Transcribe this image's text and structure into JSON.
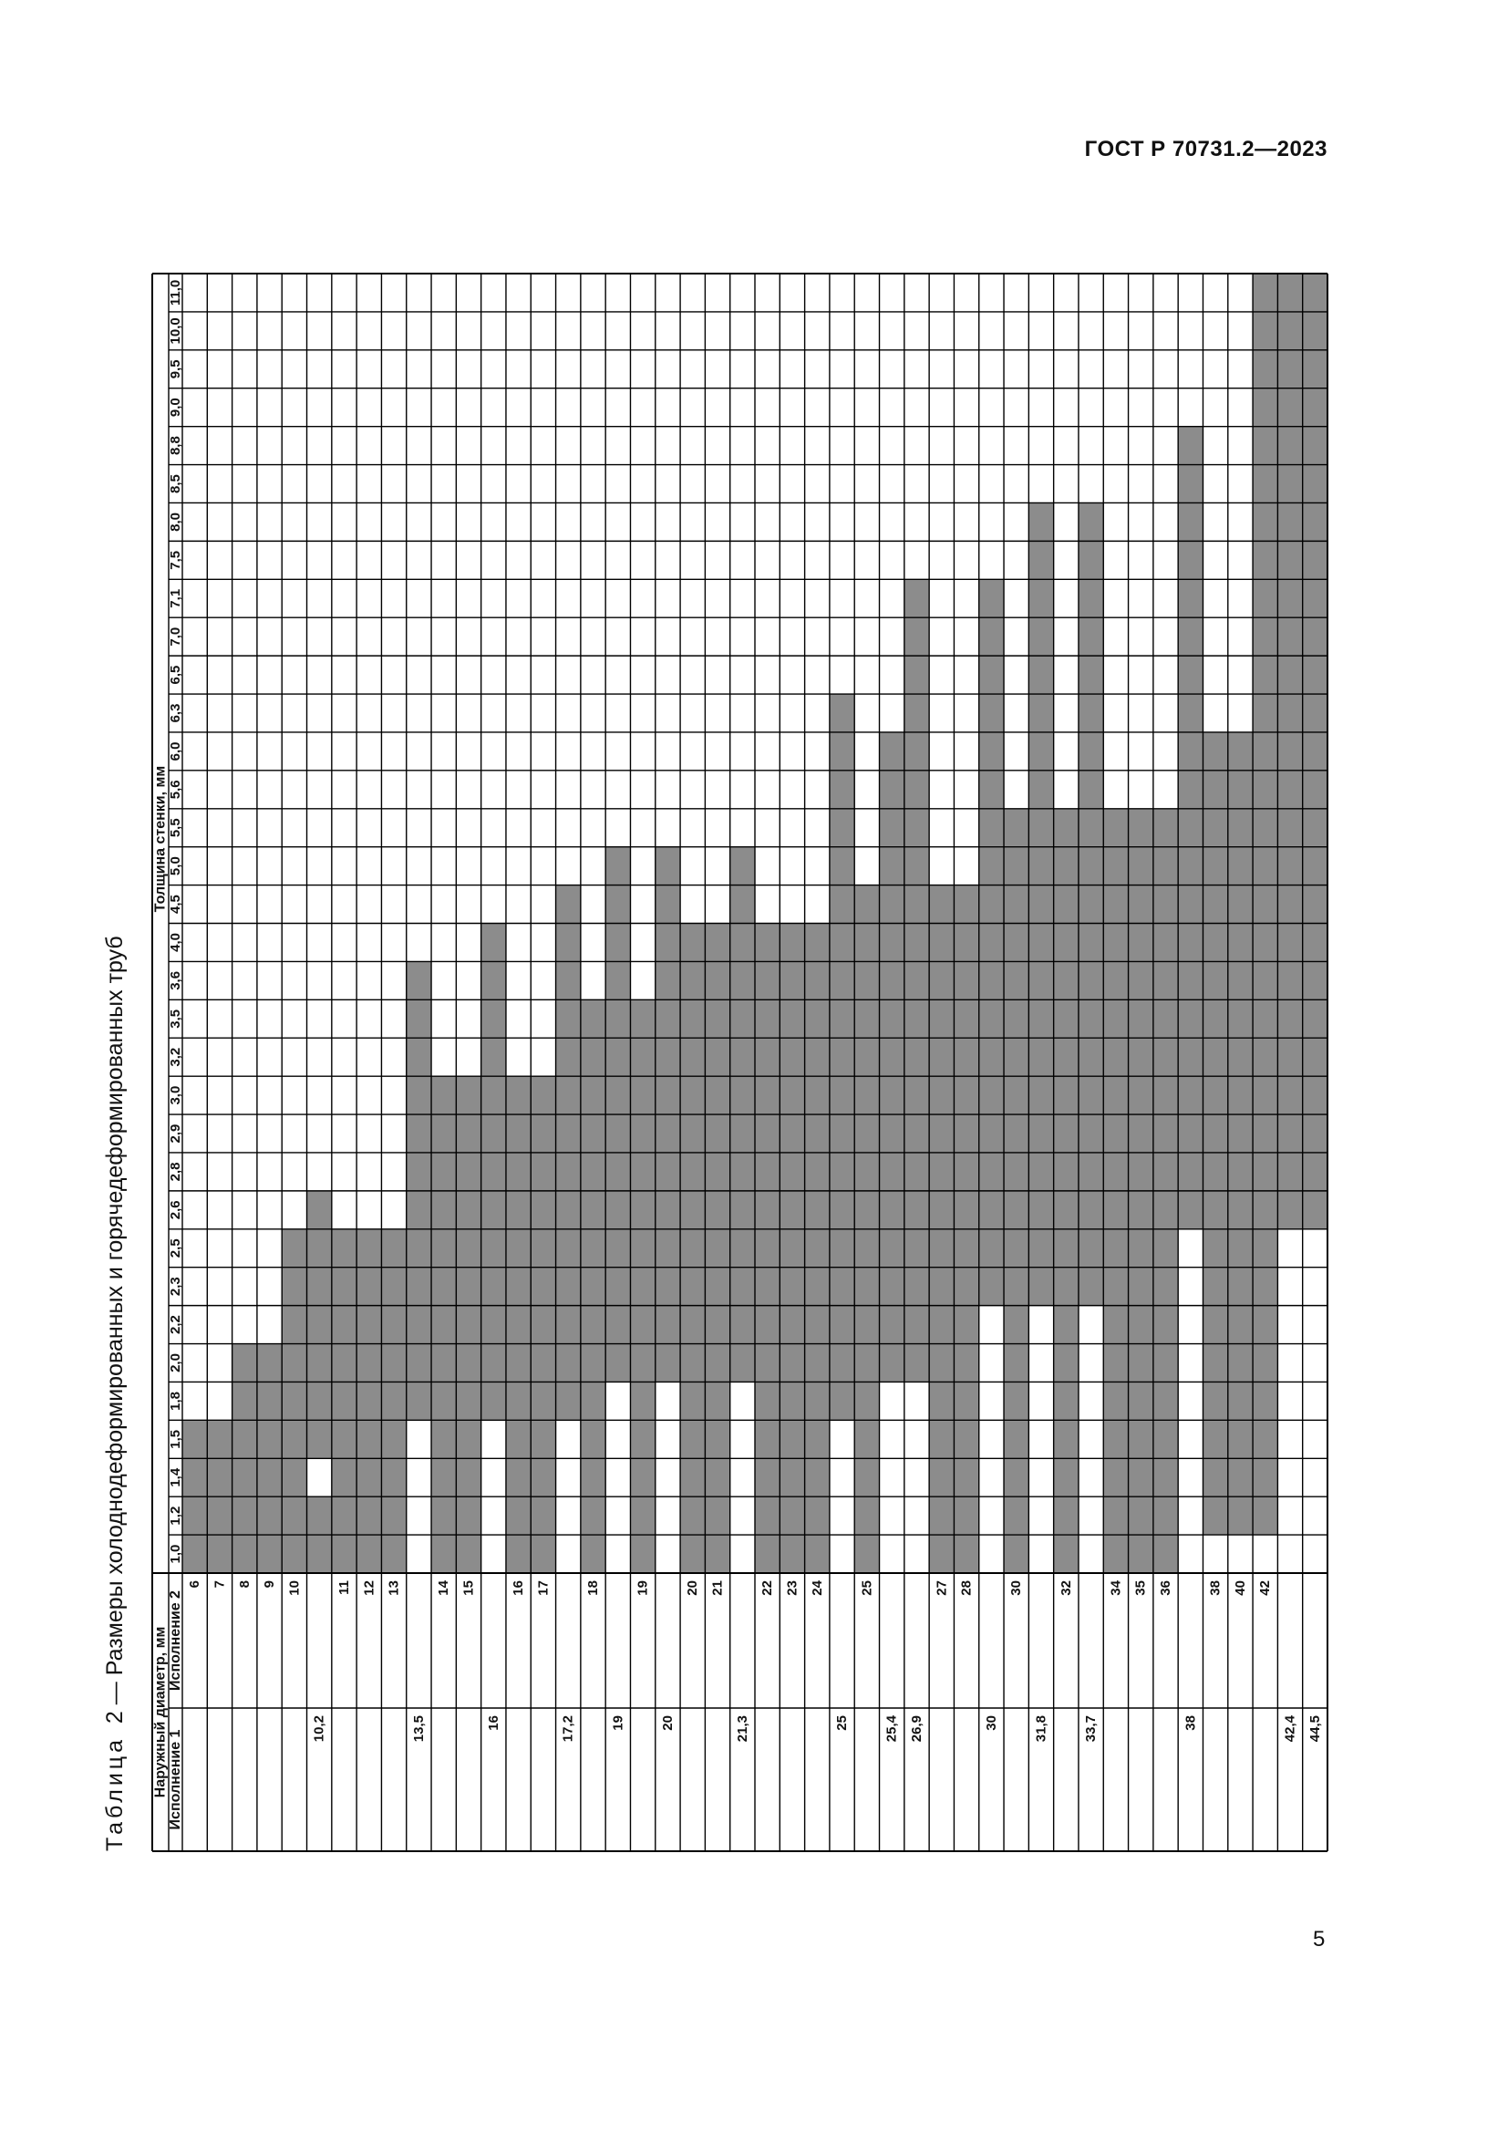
{
  "document": {
    "standard": "ГОСТ Р 70731.2—2023",
    "page_number": "5",
    "table_prefix": "Таблица",
    "table_number": "2",
    "table_dash": "—",
    "table_title": "Размеры холоднодеформированных и горячедеформированных труб"
  },
  "table": {
    "header_diameter": "Наружный диаметр, мм",
    "header_exec1": "Исполнение 1",
    "header_exec2": "Исполнение 2",
    "header_thickness": "Толщина стенки, мм",
    "fill_color": "#8c8c8c",
    "thicknesses": [
      "1,0",
      "1,2",
      "1,4",
      "1,5",
      "1,8",
      "2,0",
      "2,2",
      "2,3",
      "2,5",
      "2,6",
      "2,8",
      "2,9",
      "3,0",
      "3,2",
      "3,5",
      "3,6",
      "4,0",
      "4,5",
      "5,0",
      "5,5",
      "5,6",
      "6,0",
      "6,3",
      "6,5",
      "7,0",
      "7,1",
      "7,5",
      "8,0",
      "8,5",
      "8,8",
      "9,0",
      "9,5",
      "10,0",
      "11,0"
    ],
    "rows": [
      {
        "e1": "",
        "e2": "6",
        "filled": [
          0,
          1,
          2,
          3
        ]
      },
      {
        "e1": "",
        "e2": "7",
        "filled": [
          0,
          1,
          2,
          3
        ]
      },
      {
        "e1": "",
        "e2": "8",
        "filled": [
          0,
          1,
          2,
          3,
          4,
          5
        ]
      },
      {
        "e1": "",
        "e2": "9",
        "filled": [
          0,
          1,
          2,
          3,
          4,
          5
        ]
      },
      {
        "e1": "",
        "e2": "10",
        "filled": [
          0,
          1,
          2,
          3,
          4,
          5,
          6,
          7,
          8
        ]
      },
      {
        "e1": "10,2",
        "e2": "",
        "filled": [
          0,
          1,
          3,
          4,
          5,
          6,
          7,
          8,
          9
        ]
      },
      {
        "e1": "",
        "e2": "11",
        "filled": [
          0,
          1,
          2,
          3,
          4,
          5,
          6,
          7,
          8
        ]
      },
      {
        "e1": "",
        "e2": "12",
        "filled": [
          0,
          1,
          2,
          3,
          4,
          5,
          6,
          7,
          8
        ]
      },
      {
        "e1": "",
        "e2": "13",
        "filled": [
          0,
          1,
          2,
          3,
          4,
          5,
          6,
          7,
          8
        ]
      },
      {
        "e1": "13,5",
        "e2": "",
        "filled": [
          4,
          5,
          6,
          7,
          8,
          9,
          10,
          11,
          12,
          13,
          14,
          15
        ]
      },
      {
        "e1": "",
        "e2": "14",
        "filled": [
          0,
          1,
          2,
          3,
          4,
          5,
          6,
          7,
          8,
          9,
          10,
          11,
          12
        ]
      },
      {
        "e1": "",
        "e2": "15",
        "filled": [
          0,
          1,
          2,
          3,
          4,
          5,
          6,
          7,
          8,
          9,
          10,
          11,
          12
        ]
      },
      {
        "e1": "16",
        "e2": "",
        "filled": [
          4,
          5,
          6,
          7,
          8,
          9,
          10,
          11,
          12,
          13,
          14,
          15,
          16
        ]
      },
      {
        "e1": "",
        "e2": "16",
        "filled": [
          0,
          1,
          2,
          3,
          4,
          5,
          6,
          7,
          8,
          9,
          10,
          11,
          12
        ]
      },
      {
        "e1": "",
        "e2": "17",
        "filled": [
          0,
          1,
          2,
          3,
          4,
          5,
          6,
          7,
          8,
          9,
          10,
          11,
          12
        ]
      },
      {
        "e1": "17,2",
        "e2": "",
        "filled": [
          4,
          5,
          6,
          7,
          8,
          9,
          10,
          11,
          12,
          13,
          14,
          15,
          16,
          17
        ]
      },
      {
        "e1": "",
        "e2": "18",
        "filled": [
          0,
          1,
          2,
          3,
          4,
          5,
          6,
          7,
          8,
          9,
          10,
          11,
          12,
          13,
          14
        ]
      },
      {
        "e1": "19",
        "e2": "",
        "filled": [
          5,
          6,
          7,
          8,
          9,
          10,
          11,
          12,
          13,
          14,
          15,
          16,
          17,
          18
        ]
      },
      {
        "e1": "",
        "e2": "19",
        "filled": [
          0,
          1,
          2,
          3,
          4,
          5,
          6,
          7,
          8,
          9,
          10,
          11,
          12,
          13,
          14
        ]
      },
      {
        "e1": "20",
        "e2": "",
        "filled": [
          5,
          6,
          7,
          8,
          9,
          10,
          11,
          12,
          13,
          14,
          15,
          16,
          17,
          18
        ]
      },
      {
        "e1": "",
        "e2": "20",
        "filled": [
          0,
          1,
          2,
          3,
          4,
          5,
          6,
          7,
          8,
          9,
          10,
          11,
          12,
          13,
          14,
          15,
          16
        ]
      },
      {
        "e1": "",
        "e2": "21",
        "filled": [
          0,
          1,
          2,
          3,
          4,
          5,
          6,
          7,
          8,
          9,
          10,
          11,
          12,
          13,
          14,
          15,
          16
        ]
      },
      {
        "e1": "21,3",
        "e2": "",
        "filled": [
          5,
          6,
          7,
          8,
          9,
          10,
          11,
          12,
          13,
          14,
          15,
          16,
          17,
          18
        ]
      },
      {
        "e1": "",
        "e2": "22",
        "filled": [
          0,
          1,
          2,
          3,
          4,
          5,
          6,
          7,
          8,
          9,
          10,
          11,
          12,
          13,
          14,
          15,
          16
        ]
      },
      {
        "e1": "",
        "e2": "23",
        "filled": [
          0,
          1,
          2,
          3,
          4,
          5,
          6,
          7,
          8,
          9,
          10,
          11,
          12,
          13,
          14,
          15,
          16
        ]
      },
      {
        "e1": "",
        "e2": "24",
        "filled": [
          0,
          1,
          2,
          3,
          4,
          5,
          6,
          7,
          8,
          9,
          10,
          11,
          12,
          13,
          14,
          15,
          16
        ]
      },
      {
        "e1": "25",
        "e2": "",
        "filled": [
          4,
          5,
          6,
          7,
          8,
          9,
          10,
          11,
          12,
          13,
          14,
          15,
          16,
          17,
          18,
          19,
          20,
          21,
          22
        ]
      },
      {
        "e1": "",
        "e2": "25",
        "filled": [
          0,
          1,
          2,
          3,
          4,
          5,
          6,
          7,
          8,
          9,
          10,
          11,
          12,
          13,
          14,
          15,
          16,
          17
        ]
      },
      {
        "e1": "25,4",
        "e2": "",
        "filled": [
          5,
          6,
          7,
          8,
          9,
          10,
          11,
          12,
          13,
          14,
          15,
          16,
          17,
          18,
          19,
          20,
          21
        ]
      },
      {
        "e1": "26,9",
        "e2": "",
        "filled": [
          5,
          6,
          7,
          8,
          9,
          10,
          11,
          12,
          13,
          14,
          15,
          16,
          17,
          18,
          19,
          20,
          21,
          22,
          23,
          24,
          25
        ]
      },
      {
        "e1": "",
        "e2": "27",
        "filled": [
          0,
          1,
          2,
          3,
          4,
          5,
          6,
          7,
          8,
          9,
          10,
          11,
          12,
          13,
          14,
          15,
          16,
          17
        ]
      },
      {
        "e1": "",
        "e2": "28",
        "filled": [
          0,
          1,
          2,
          3,
          4,
          5,
          6,
          7,
          8,
          9,
          10,
          11,
          12,
          13,
          14,
          15,
          16,
          17
        ]
      },
      {
        "e1": "30",
        "e2": "",
        "filled": [
          7,
          8,
          9,
          10,
          11,
          12,
          13,
          14,
          15,
          16,
          17,
          18,
          19,
          20,
          21,
          22,
          23,
          24,
          25
        ]
      },
      {
        "e1": "",
        "e2": "30",
        "filled": [
          0,
          1,
          2,
          3,
          4,
          5,
          6,
          7,
          8,
          9,
          10,
          11,
          12,
          13,
          14,
          15,
          16,
          17,
          18,
          19
        ]
      },
      {
        "e1": "31,8",
        "e2": "",
        "filled": [
          7,
          8,
          9,
          10,
          11,
          12,
          13,
          14,
          15,
          16,
          17,
          18,
          19,
          20,
          21,
          22,
          23,
          24,
          25,
          26,
          27
        ]
      },
      {
        "e1": "",
        "e2": "32",
        "filled": [
          0,
          1,
          2,
          3,
          4,
          5,
          6,
          7,
          8,
          9,
          10,
          11,
          12,
          13,
          14,
          15,
          16,
          17,
          18,
          19
        ]
      },
      {
        "e1": "33,7",
        "e2": "",
        "filled": [
          7,
          8,
          9,
          10,
          11,
          12,
          13,
          14,
          15,
          16,
          17,
          18,
          19,
          20,
          21,
          22,
          23,
          24,
          25,
          26,
          27
        ]
      },
      {
        "e1": "",
        "e2": "34",
        "filled": [
          0,
          1,
          2,
          3,
          4,
          5,
          6,
          7,
          8,
          9,
          10,
          11,
          12,
          13,
          14,
          15,
          16,
          17,
          18,
          19
        ]
      },
      {
        "e1": "",
        "e2": "35",
        "filled": [
          0,
          1,
          2,
          3,
          4,
          5,
          6,
          7,
          8,
          9,
          10,
          11,
          12,
          13,
          14,
          15,
          16,
          17,
          18,
          19
        ]
      },
      {
        "e1": "",
        "e2": "36",
        "filled": [
          0,
          1,
          2,
          3,
          4,
          5,
          6,
          7,
          8,
          9,
          10,
          11,
          12,
          13,
          14,
          15,
          16,
          17,
          18,
          19
        ]
      },
      {
        "e1": "38",
        "e2": "",
        "filled": [
          9,
          10,
          11,
          12,
          13,
          14,
          15,
          16,
          17,
          18,
          19,
          20,
          21,
          22,
          23,
          24,
          25,
          26,
          27,
          28,
          29
        ]
      },
      {
        "e1": "",
        "e2": "38",
        "filled": [
          1,
          2,
          3,
          4,
          5,
          6,
          7,
          8,
          9,
          10,
          11,
          12,
          13,
          14,
          15,
          16,
          17,
          18,
          19,
          20,
          21
        ]
      },
      {
        "e1": "",
        "e2": "40",
        "filled": [
          1,
          2,
          3,
          4,
          5,
          6,
          7,
          8,
          9,
          10,
          11,
          12,
          13,
          14,
          15,
          16,
          17,
          18,
          19,
          20,
          21
        ]
      },
      {
        "e1": "",
        "e2": "42",
        "filled": [
          1,
          2,
          3,
          4,
          5,
          6,
          7,
          8,
          9,
          10,
          11,
          12,
          13,
          14,
          15,
          16,
          17,
          18,
          19,
          20,
          21,
          22,
          23,
          24,
          25,
          26,
          27,
          28,
          29,
          30,
          31,
          32,
          33
        ]
      },
      {
        "e1": "42,4",
        "e2": "",
        "filled": [
          9,
          10,
          11,
          12,
          13,
          14,
          15,
          16,
          17,
          18,
          19,
          20,
          21,
          22,
          23,
          24,
          25,
          26,
          27,
          28,
          29,
          30,
          31,
          32,
          33
        ]
      },
      {
        "e1": "44,5",
        "e2": "",
        "filled": [
          9,
          10,
          11,
          12,
          13,
          14,
          15,
          16,
          17,
          18,
          19,
          20,
          21,
          22,
          23,
          24,
          25,
          26,
          27,
          28,
          29,
          30,
          31,
          32,
          33
        ]
      }
    ]
  }
}
